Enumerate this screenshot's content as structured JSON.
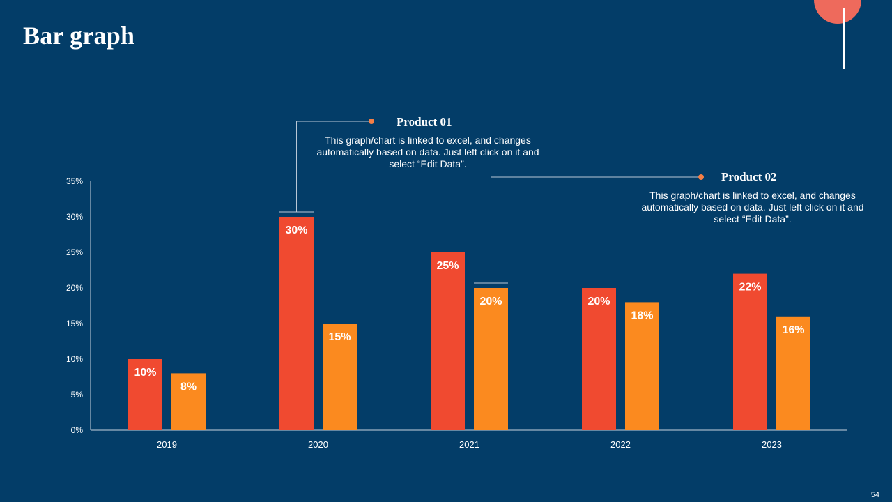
{
  "slide": {
    "title": "Bar graph",
    "page_number": "54"
  },
  "callouts": [
    {
      "title": "Product 01",
      "text": "This graph/chart is linked to excel, and changes automatically based on data. Just left click on it and select “Edit Data”."
    },
    {
      "title": "Product 02",
      "text": "This graph/chart is linked to excel, and changes automatically based on data. Just left click on it and select “Edit Data”."
    }
  ],
  "colors": {
    "background": "#033d68",
    "product_01": "#f04a30",
    "product_02": "#fb8a1f",
    "accent_circle": "#ee6a5c"
  },
  "chart_data": {
    "type": "bar",
    "categories": [
      "2019",
      "2020",
      "2021",
      "2022",
      "2023"
    ],
    "series": [
      {
        "name": "Product 01",
        "values": [
          10,
          30,
          25,
          20,
          22
        ],
        "labels": [
          "10%",
          "30%",
          "25%",
          "20%",
          "22%"
        ]
      },
      {
        "name": "Product 02",
        "values": [
          8,
          15,
          20,
          18,
          16
        ],
        "labels": [
          "8%",
          "15%",
          "20%",
          "18%",
          "16%"
        ]
      }
    ],
    "ylim": [
      0,
      35
    ],
    "yticks": [
      "0%",
      "5%",
      "10%",
      "15%",
      "20%",
      "25%",
      "30%",
      "35%"
    ],
    "ytick_values": [
      0,
      5,
      10,
      15,
      20,
      25,
      30,
      35
    ],
    "title": "",
    "xlabel": "",
    "ylabel": "",
    "grid": false,
    "legend": "none"
  }
}
